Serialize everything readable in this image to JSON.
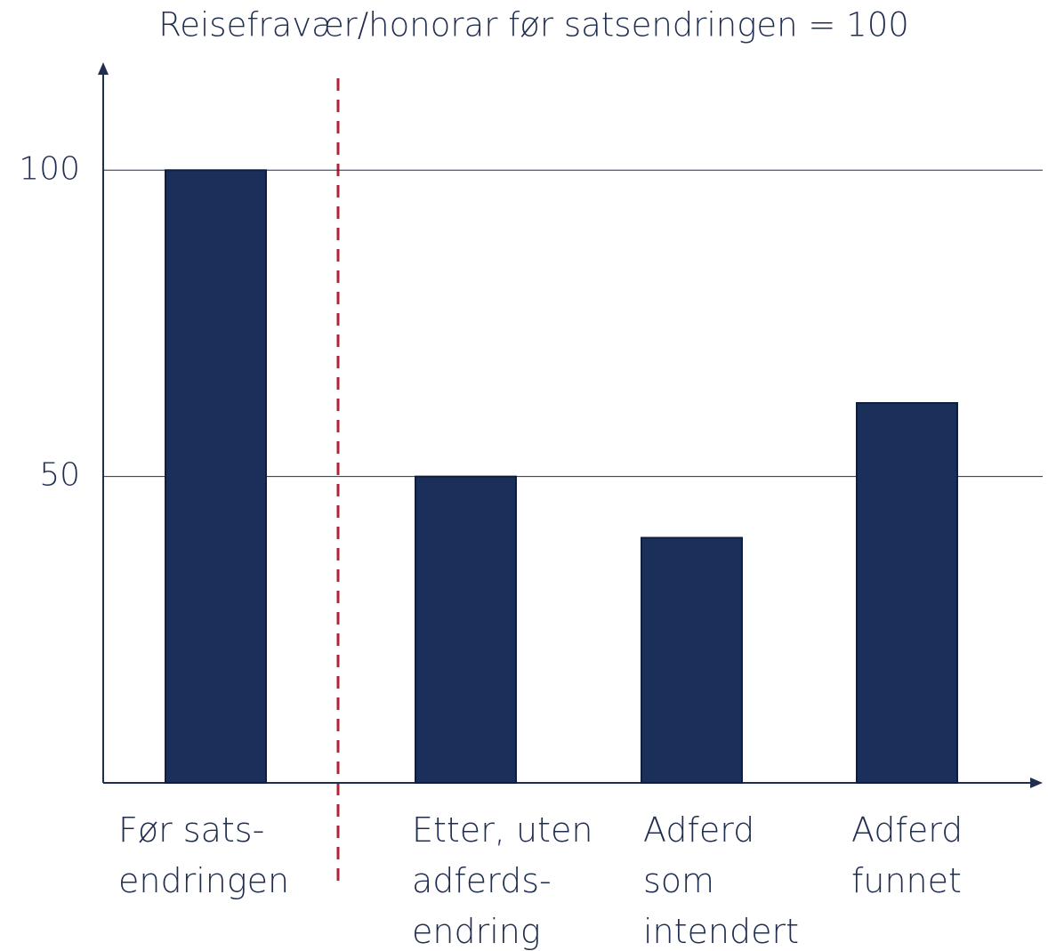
{
  "chart_data": {
    "type": "bar",
    "title": "Reisefravær/honorar før satsendringen = 100",
    "categories": [
      [
        "Før sats-",
        "endringen"
      ],
      [
        "Etter, uten",
        "adferds-",
        "endring"
      ],
      [
        "Adferd",
        "som",
        "intendert"
      ],
      [
        "Adferd",
        "funnet"
      ]
    ],
    "values": [
      100,
      50,
      40,
      62
    ],
    "color": "#1a2f5a",
    "ylim": [
      0,
      115
    ],
    "yticks": [
      50,
      100
    ],
    "grid": true
  }
}
